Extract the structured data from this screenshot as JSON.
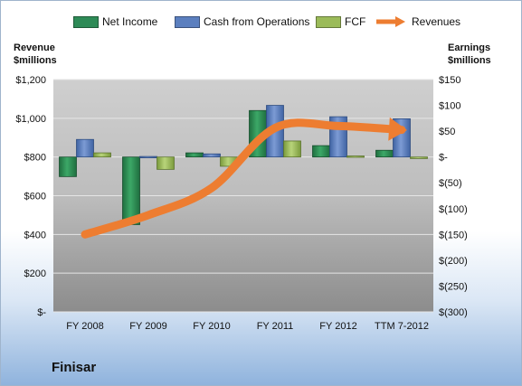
{
  "legend": {
    "net_income": "Net Income",
    "cfo": "Cash from Operations",
    "fcf": "FCF",
    "revenues": "Revenues"
  },
  "left_axis_title": [
    "Revenue",
    "$millions"
  ],
  "right_axis_title": [
    "Earnings",
    "$millions"
  ],
  "company": "Finisar",
  "colors": {
    "net_income": "#2e8b57",
    "cfo": "#5b7fbf",
    "fcf": "#9bbb59",
    "revenues": "#ed7d31"
  },
  "chart_data": {
    "type": "bar",
    "categories": [
      "FY 2008",
      "FY 2009",
      "FY 2010",
      "FY 2011",
      "FY 2012",
      "TTM 7-2012"
    ],
    "left_axis": {
      "ticks": [
        0,
        200,
        400,
        600,
        800,
        1000,
        1200
      ],
      "tick_labels": [
        "$-",
        "$200",
        "$400",
        "$600",
        "$800",
        "$1,000",
        "$1,200"
      ],
      "ylim": [
        0,
        1200
      ]
    },
    "right_axis": {
      "ticks": [
        -300,
        -250,
        -200,
        -150,
        -100,
        -50,
        0,
        50,
        100,
        150
      ],
      "tick_labels": [
        "$(300)",
        "$(250)",
        "$(200)",
        "$(150)",
        "$(100)",
        "$(50)",
        "$-",
        "$50",
        "$100",
        "$150"
      ],
      "ylim": [
        -300,
        150
      ]
    },
    "series": [
      {
        "name": "Net Income",
        "axis": "right",
        "values": [
          -38,
          -131,
          8,
          90,
          22,
          13
        ]
      },
      {
        "name": "Cash from Operations",
        "axis": "right",
        "values": [
          34,
          1,
          6,
          100,
          78,
          74
        ]
      },
      {
        "name": "FCF",
        "axis": "right",
        "values": [
          8,
          -24,
          -18,
          31,
          2,
          -3
        ]
      },
      {
        "name": "Revenues",
        "axis": "left",
        "type": "line",
        "values": [
          400,
          500,
          640,
          950,
          960,
          940
        ]
      }
    ]
  }
}
